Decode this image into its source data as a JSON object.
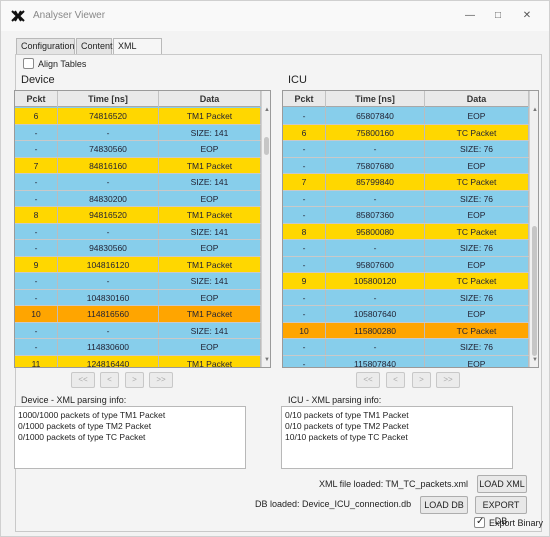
{
  "window": {
    "title": "Analyser Viewer"
  },
  "tabs": [
    {
      "label": "Configuration",
      "active": false
    },
    {
      "label": "Content",
      "active": false
    },
    {
      "label": "XML parser",
      "active": true
    }
  ],
  "align_tables": {
    "label": "Align Tables",
    "checked": false
  },
  "device": {
    "title": "Device",
    "columns": [
      "Pckt",
      "Time [ns]",
      "Data"
    ],
    "rows": [
      {
        "pckt": "6",
        "time": "74816520",
        "data": "TM1 Packet",
        "style": "packet"
      },
      {
        "pckt": "-",
        "time": "-",
        "data": "SIZE: 141",
        "style": "normal"
      },
      {
        "pckt": "-",
        "time": "74830560",
        "data": "EOP",
        "style": "normal"
      },
      {
        "pckt": "7",
        "time": "84816160",
        "data": "TM1 Packet",
        "style": "packet"
      },
      {
        "pckt": "-",
        "time": "-",
        "data": "SIZE: 141",
        "style": "normal"
      },
      {
        "pckt": "-",
        "time": "84830200",
        "data": "EOP",
        "style": "normal"
      },
      {
        "pckt": "8",
        "time": "94816520",
        "data": "TM1 Packet",
        "style": "packet"
      },
      {
        "pckt": "-",
        "time": "-",
        "data": "SIZE: 141",
        "style": "normal"
      },
      {
        "pckt": "-",
        "time": "94830560",
        "data": "EOP",
        "style": "normal"
      },
      {
        "pckt": "9",
        "time": "104816120",
        "data": "TM1 Packet",
        "style": "packet"
      },
      {
        "pckt": "-",
        "time": "-",
        "data": "SIZE: 141",
        "style": "normal"
      },
      {
        "pckt": "-",
        "time": "104830160",
        "data": "EOP",
        "style": "normal"
      },
      {
        "pckt": "10",
        "time": "114816560",
        "data": "TM1 Packet",
        "style": "selected"
      },
      {
        "pckt": "-",
        "time": "-",
        "data": "SIZE: 141",
        "style": "normal"
      },
      {
        "pckt": "-",
        "time": "114830600",
        "data": "EOP",
        "style": "normal"
      },
      {
        "pckt": "11",
        "time": "124816440",
        "data": "TM1 Packet",
        "style": "packet"
      }
    ],
    "nav": [
      "<<",
      "<",
      ">",
      ">>"
    ],
    "info_label": "Device - XML parsing info:",
    "info_lines": [
      "1000/1000 packets of type TM1 Packet",
      "0/1000 packets of type TM2 Packet",
      "0/1000 packets of type TC Packet"
    ]
  },
  "icu": {
    "title": "ICU",
    "columns": [
      "Pckt",
      "Time [ns]",
      "Data"
    ],
    "rows": [
      {
        "pckt": "-",
        "time": "65807840",
        "data": "EOP",
        "style": "normal"
      },
      {
        "pckt": "6",
        "time": "75800160",
        "data": "TC Packet",
        "style": "packet"
      },
      {
        "pckt": "-",
        "time": "-",
        "data": "SIZE: 76",
        "style": "normal"
      },
      {
        "pckt": "-",
        "time": "75807680",
        "data": "EOP",
        "style": "normal"
      },
      {
        "pckt": "7",
        "time": "85799840",
        "data": "TC Packet",
        "style": "packet"
      },
      {
        "pckt": "-",
        "time": "-",
        "data": "SIZE: 76",
        "style": "normal"
      },
      {
        "pckt": "-",
        "time": "85807360",
        "data": "EOP",
        "style": "normal"
      },
      {
        "pckt": "8",
        "time": "95800080",
        "data": "TC Packet",
        "style": "packet"
      },
      {
        "pckt": "-",
        "time": "-",
        "data": "SIZE: 76",
        "style": "normal"
      },
      {
        "pckt": "-",
        "time": "95807600",
        "data": "EOP",
        "style": "normal"
      },
      {
        "pckt": "9",
        "time": "105800120",
        "data": "TC Packet",
        "style": "packet"
      },
      {
        "pckt": "-",
        "time": "-",
        "data": "SIZE: 76",
        "style": "normal"
      },
      {
        "pckt": "-",
        "time": "105807640",
        "data": "EOP",
        "style": "normal"
      },
      {
        "pckt": "10",
        "time": "115800280",
        "data": "TC Packet",
        "style": "selected"
      },
      {
        "pckt": "-",
        "time": "-",
        "data": "SIZE: 76",
        "style": "normal"
      },
      {
        "pckt": "-",
        "time": "115807840",
        "data": "EOP",
        "style": "normal"
      }
    ],
    "nav": [
      "<<",
      "<",
      ">",
      ">>"
    ],
    "info_label": "ICU - XML parsing info:",
    "info_lines": [
      "0/10 packets of type TM1 Packet",
      "0/10 packets of type TM2 Packet",
      "10/10 packets of type TC Packet"
    ]
  },
  "footer": {
    "xml_loaded": "XML file loaded: TM_TC_packets.xml",
    "load_xml": "LOAD XML",
    "db_loaded": "DB loaded: Device_ICU_connection.db",
    "load_db": "LOAD DB",
    "export_db": "EXPORT DB",
    "export_binary": {
      "label": "Export Binary",
      "checked": true
    }
  },
  "colors": {
    "packet": "#ffd700",
    "normal": "#87ceeb",
    "selected": "#ffa500"
  }
}
